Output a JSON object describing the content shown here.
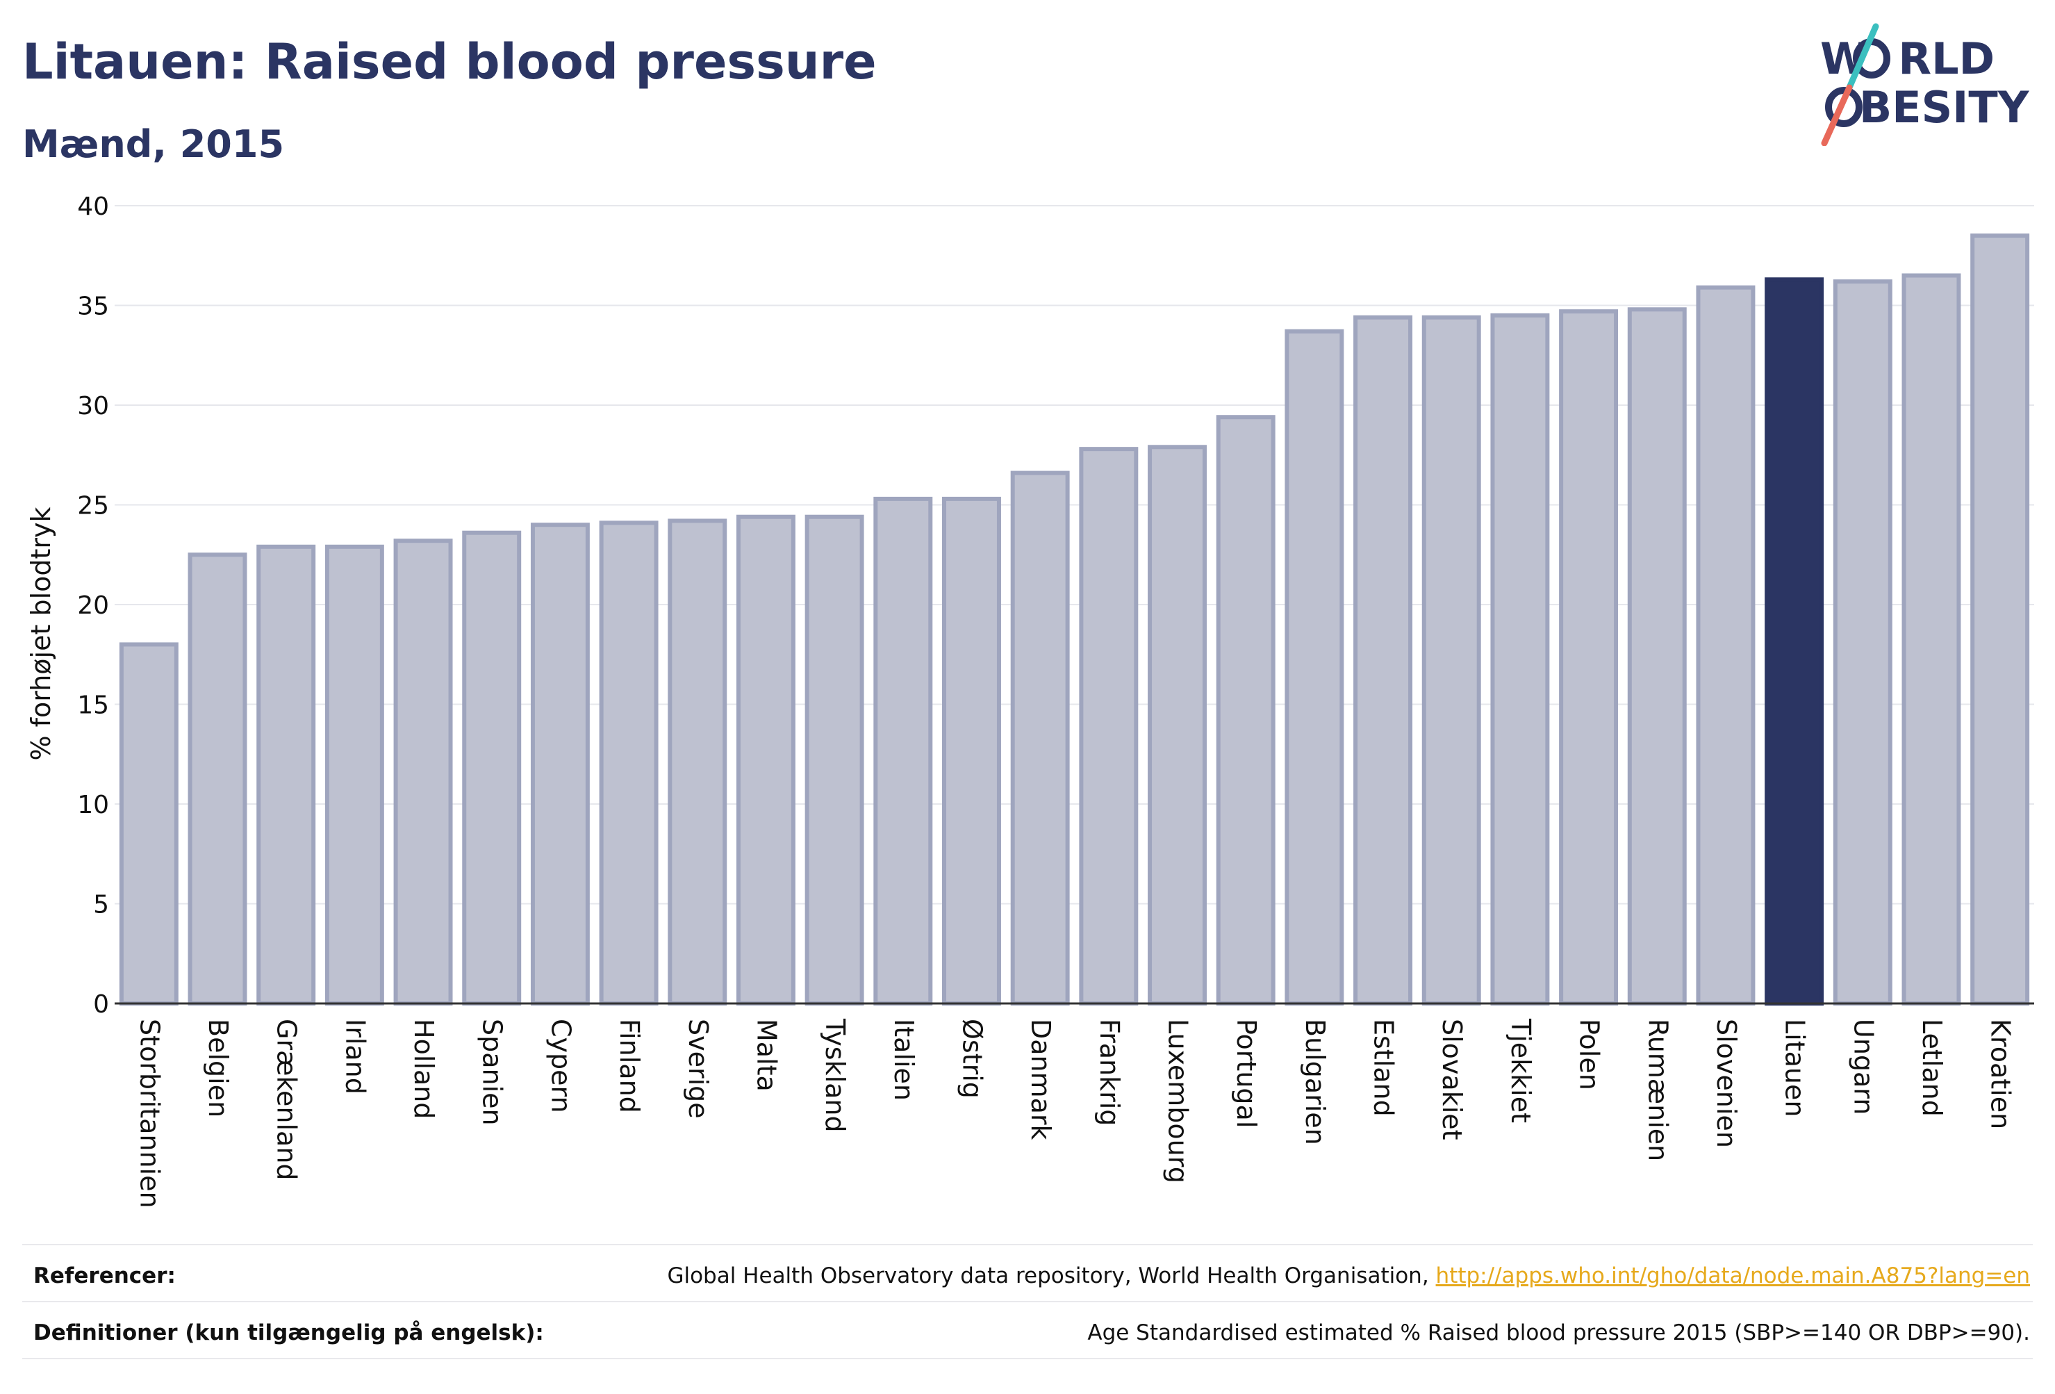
{
  "title": "Litauen: Raised blood pressure",
  "subtitle": "Mænd, 2015",
  "logo": {
    "line1_a": "W",
    "line1_b": "RLD",
    "line2_a": "",
    "line2_b": "BESITY",
    "colors": {
      "navy": "#2b3563",
      "teal": "#3bbfbf",
      "coral": "#e8695a"
    }
  },
  "chart_data": {
    "type": "bar",
    "ylabel": "% forhøjet blodtryk",
    "xlabel": "",
    "ylim": [
      0,
      40
    ],
    "yticks": [
      0,
      5,
      10,
      15,
      20,
      25,
      30,
      35,
      40
    ],
    "grid": true,
    "highlight": "Litauen",
    "colors": {
      "bar": "#bec1d0",
      "bar_border": "#9fa5be",
      "highlight": "#2b3563"
    },
    "categories": [
      "Storbritannien",
      "Belgien",
      "Grækenland",
      "Irland",
      "Holland",
      "Spanien",
      "Cypern",
      "Finland",
      "Sverige",
      "Malta",
      "Tyskland",
      "Italien",
      "Østrig",
      "Danmark",
      "Frankrig",
      "Luxembourg",
      "Portugal",
      "Bulgarien",
      "Estland",
      "Slovakiet",
      "Tjekkiet",
      "Polen",
      "Rumænien",
      "Slovenien",
      "Litauen",
      "Ungarn",
      "Letland",
      "Kroatien"
    ],
    "values": [
      18.0,
      22.5,
      22.9,
      22.9,
      23.2,
      23.6,
      24.0,
      24.1,
      24.2,
      24.4,
      24.4,
      25.3,
      25.3,
      26.6,
      27.8,
      27.9,
      29.4,
      33.7,
      34.4,
      34.4,
      34.5,
      34.7,
      34.8,
      35.9,
      36.3,
      36.2,
      36.5,
      38.5
    ]
  },
  "references": {
    "label": "Referencer:",
    "text": "Global Health Observatory data repository, World Health Organisation, ",
    "link": "http://apps.who.int/gho/data/node.main.A875?lang=en"
  },
  "definitions": {
    "label": "Definitioner (kun tilgængelig på engelsk):",
    "text": "Age Standardised estimated % Raised blood pressure 2015 (SBP>=140 OR DBP>=90)."
  }
}
